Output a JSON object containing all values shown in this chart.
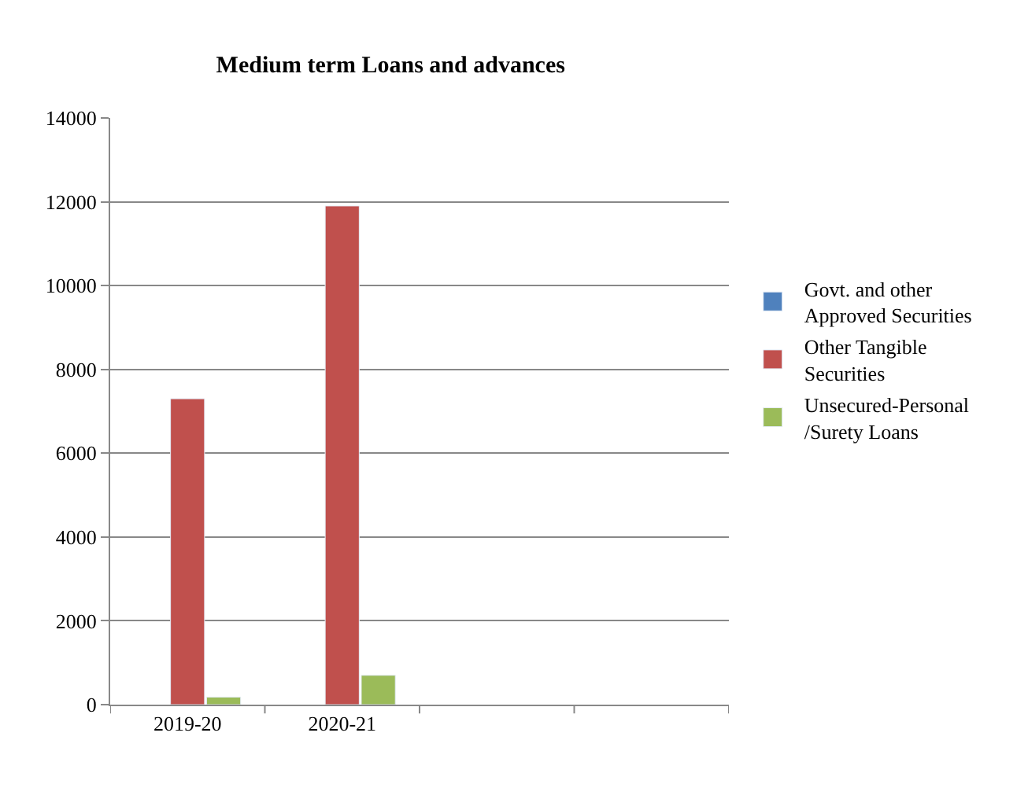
{
  "chart_data": {
    "type": "bar",
    "title": "Medium term Loans and advances",
    "categories": [
      "2019-20",
      "2020-21",
      null,
      null
    ],
    "series": [
      {
        "name": "Govt. and other Approved Securities",
        "color": "#4f81bd",
        "values": [
          null,
          null,
          null,
          null
        ]
      },
      {
        "name": "Other Tangible Securities",
        "color": "#c0504d",
        "values": [
          7300,
          11900,
          null,
          null
        ]
      },
      {
        "name": "Unsecured-Personal /Surety Loans",
        "color": "#9bbb59",
        "values": [
          180,
          700,
          null,
          null
        ]
      }
    ],
    "ylim": [
      0,
      14000
    ],
    "yticks": [
      0,
      2000,
      4000,
      6000,
      8000,
      10000,
      12000,
      14000
    ],
    "grid": "y",
    "legend": "right"
  }
}
